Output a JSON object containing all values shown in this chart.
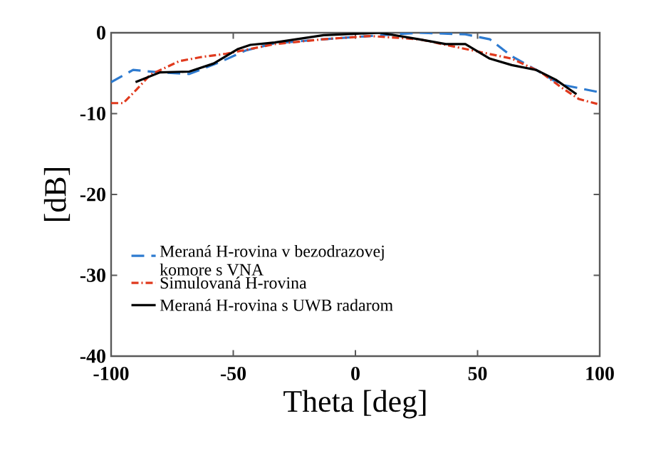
{
  "chart_data": {
    "type": "line",
    "xlabel": "Theta [deg]",
    "ylabel": "[dB]",
    "xlim": [
      -100,
      100
    ],
    "ylim": [
      -40,
      0
    ],
    "xticks": [
      -100,
      -50,
      0,
      50,
      100
    ],
    "yticks": [
      -40,
      -30,
      -20,
      -10,
      0
    ],
    "grid": false,
    "legend": "left",
    "marker": "none",
    "series": [
      {
        "name": "Meraná H-rovina v bezodrazovej komore s VNA",
        "color": "#2e7bd0",
        "line_style": "dashed",
        "x": [
          -100,
          -91,
          -80,
          -68,
          -56,
          -45,
          -33,
          -13,
          6,
          26,
          45,
          55,
          64,
          74,
          84,
          99
        ],
        "values": [
          -6.1,
          -4.6,
          -4.9,
          -5.1,
          -3.7,
          -2.2,
          -1.3,
          -0.8,
          -0.4,
          0,
          -0.2,
          -0.8,
          -2.9,
          -4.6,
          -6.4,
          -7.3
        ]
      },
      {
        "name": "Simulovaná H-rovina",
        "color": "#e03a1e",
        "line_style": "dashdotted",
        "x": [
          -100,
          -95,
          -89.5,
          -84,
          -72,
          -63,
          -53,
          -33,
          -13,
          6,
          26,
          45,
          64,
          76,
          84,
          91.5,
          99
        ],
        "values": [
          -8.7,
          -8.7,
          -7,
          -5.2,
          -3.5,
          -3,
          -2.6,
          -1.4,
          -0.8,
          -0.4,
          -0.8,
          -2,
          -3.2,
          -4.9,
          -6.7,
          -8.2,
          -8.8
        ]
      },
      {
        "name": "Meraná H-rovina s UWB radarom",
        "color": "#000000",
        "line_style": "solid",
        "x": [
          -90,
          -80,
          -68,
          -58,
          -48,
          -43,
          -33,
          -13,
          10,
          26,
          37,
          45,
          55,
          64,
          74,
          82,
          90.5
        ],
        "values": [
          -6.1,
          -4.9,
          -4.8,
          -3.8,
          -2,
          -1.5,
          -1.2,
          -0.3,
          0,
          -0.8,
          -1.4,
          -1.4,
          -3.2,
          -4,
          -4.6,
          -5.8,
          -7.6
        ]
      }
    ]
  }
}
